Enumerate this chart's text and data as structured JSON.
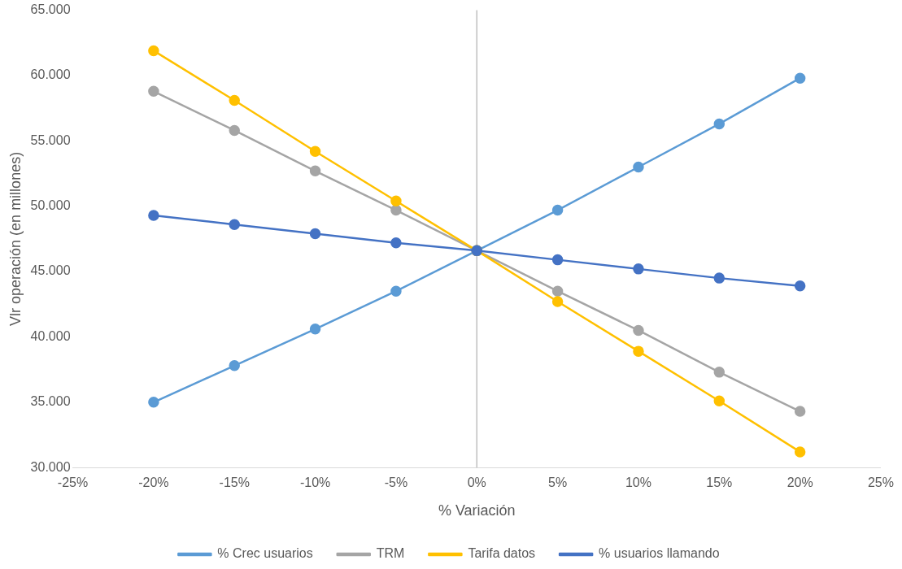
{
  "chart_data": {
    "type": "line",
    "xlabel": "% Variación",
    "ylabel": "Vlr operación (en millones)",
    "x": [
      -20,
      -15,
      -10,
      -5,
      0,
      5,
      10,
      15,
      20
    ],
    "xlim": [
      -25,
      25
    ],
    "xticks": [
      {
        "value": -25,
        "label": "-25%"
      },
      {
        "value": -20,
        "label": "-20%"
      },
      {
        "value": -15,
        "label": "-15%"
      },
      {
        "value": -10,
        "label": "-10%"
      },
      {
        "value": -5,
        "label": "-5%"
      },
      {
        "value": 0,
        "label": "0%"
      },
      {
        "value": 5,
        "label": "5%"
      },
      {
        "value": 10,
        "label": "10%"
      },
      {
        "value": 15,
        "label": "15%"
      },
      {
        "value": 20,
        "label": "20%"
      },
      {
        "value": 25,
        "label": "25%"
      }
    ],
    "ylim": [
      30000,
      65000
    ],
    "yticks": [
      {
        "value": 30000,
        "label": "30.000"
      },
      {
        "value": 35000,
        "label": "35.000"
      },
      {
        "value": 40000,
        "label": "40.000"
      },
      {
        "value": 45000,
        "label": "45.000"
      },
      {
        "value": 50000,
        "label": "50.000"
      },
      {
        "value": 55000,
        "label": "55.000"
      },
      {
        "value": 60000,
        "label": "60.000"
      },
      {
        "value": 65000,
        "label": "65.000"
      }
    ],
    "series": [
      {
        "name": "% Crec usuarios",
        "color": "#5b9bd5",
        "values": [
          35000,
          37800,
          40600,
          43500,
          46600,
          49700,
          53000,
          56300,
          59800
        ]
      },
      {
        "name": "TRM",
        "color": "#a5a5a5",
        "values": [
          58800,
          55800,
          52700,
          49700,
          46600,
          43500,
          40500,
          37300,
          34300
        ]
      },
      {
        "name": "Tarifa datos",
        "color": "#ffc000",
        "values": [
          61900,
          58100,
          54200,
          50400,
          46600,
          42700,
          38900,
          35100,
          31200
        ]
      },
      {
        "name": "% usuarios llamando",
        "color": "#4472c4",
        "values": [
          49300,
          48600,
          47900,
          47200,
          46600,
          45900,
          45200,
          44500,
          43900
        ]
      }
    ],
    "ref_lines": [
      {
        "axis": "x",
        "value": 0,
        "color": "#bfbfbf"
      }
    ],
    "grid": false,
    "legend": "bottom",
    "marker": "circle",
    "line_style": "solid"
  }
}
